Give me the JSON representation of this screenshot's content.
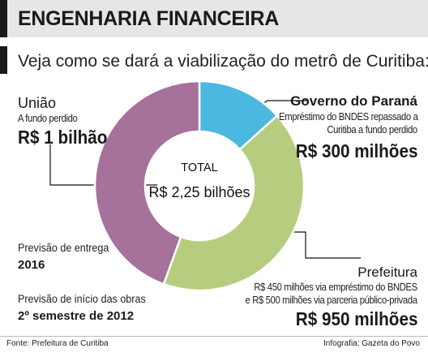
{
  "header": {
    "title": "ENGENHARIA FINANCEIRA"
  },
  "subtitle": "Veja como se dará a viabilização do metrô de Curitiba:",
  "chart_data": {
    "type": "pie",
    "donut": true,
    "total_label": "TOTAL",
    "total_value": "R$ 2,25 bilhões",
    "slices": [
      {
        "name": "Governo do Paraná",
        "value": 300,
        "unit": "R$ milhões",
        "color": "#4bb8df"
      },
      {
        "name": "Prefeitura",
        "value": 950,
        "unit": "R$ milhões",
        "color": "#b6cd7f"
      },
      {
        "name": "União",
        "value": 1000,
        "unit": "R$ milhões",
        "color": "#a6719b"
      }
    ]
  },
  "labels": {
    "uniao": {
      "name": "União",
      "desc": "A fundo perdido",
      "value": "R$ 1 bilhão"
    },
    "governo": {
      "name": "Governo do Paraná",
      "desc_lines": [
        "Empréstimo do BNDES repassado a",
        "Curitiba a fundo perdido"
      ],
      "value": "R$ 300 milhões"
    },
    "prefeitura": {
      "name": "Prefeitura",
      "desc_lines": [
        "R$ 450 milhões via empréstimo do BNDES",
        "e R$ 500 milhões via parceria público-privada"
      ],
      "value": "R$ 950 milhões"
    }
  },
  "notes": {
    "entrega_label": "Previsão de entrega",
    "entrega_value": "2016",
    "inicio_label": "Previsão de início das obras",
    "inicio_value": "2º semestre de 2012"
  },
  "footer": {
    "source": "Fonte: Prefeitura de Curitiba",
    "credit": "Infografia: Gazeta do Povo"
  }
}
